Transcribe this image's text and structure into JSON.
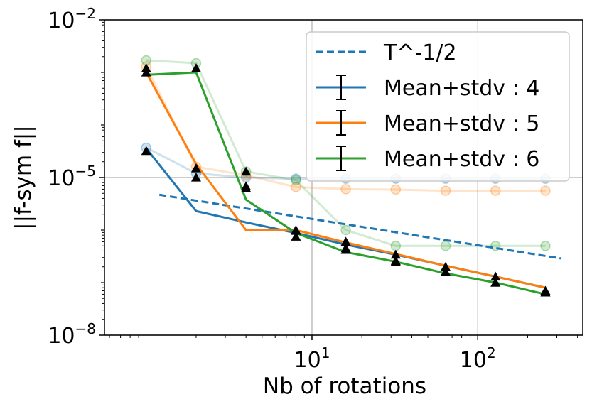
{
  "chart_data": {
    "type": "line",
    "title": "",
    "xlabel": "Nb of rotations",
    "ylabel": "||f-sym f||",
    "xscale": "log",
    "yscale": "log",
    "xlim": [
      0.56,
      430
    ],
    "ylim": [
      1e-08,
      0.01
    ],
    "x_ticks": [
      {
        "value": 10,
        "base": "10",
        "exp": "1"
      },
      {
        "value": 100,
        "base": "10",
        "exp": "2"
      }
    ],
    "y_ticks": [
      {
        "value": 1e-08,
        "base": "10",
        "exp": "−8"
      },
      {
        "value": 1e-05,
        "base": "10",
        "exp": "−5"
      },
      {
        "value": 0.01,
        "base": "10",
        "exp": "−2"
      }
    ],
    "grid": true,
    "legend_position": "top-right",
    "reference_line": {
      "name": "T^-1/2",
      "color": "#1f77b4",
      "style": "dashed",
      "x_start": 1.2,
      "x_end": 320,
      "y_start": 4.7e-06
    },
    "series": [
      {
        "name": "Mean+stdv : 4",
        "color": "#1f77b4",
        "x": [
          1,
          2,
          4,
          8,
          16,
          32,
          64,
          128,
          256
        ],
        "mean": [
          3.6e-05,
          2.3e-06,
          1.4e-06,
          8.8e-07,
          5.3e-07,
          3.4e-07,
          2.1e-07,
          1.3e-07,
          8e-08
        ],
        "mean_plus_std": [
          3.7e-05,
          1.2e-05,
          1e-05,
          9.5e-06,
          9.5e-06,
          9.5e-06,
          9.5e-06,
          9.5e-06,
          9.5e-06
        ],
        "markers": [
          3.2e-05,
          1e-05,
          6.3e-06,
          7.5e-07,
          4.5e-07,
          2.6e-07,
          1.6e-07,
          1e-07,
          6.5e-08
        ]
      },
      {
        "name": "Mean+stdv : 5",
        "color": "#ff7f0e",
        "x": [
          1,
          2,
          4,
          8,
          16,
          32,
          64,
          128,
          256
        ],
        "mean": [
          0.001,
          1.8e-05,
          1e-06,
          1e-06,
          5.8e-07,
          3.5e-07,
          2.1e-07,
          1.3e-07,
          8e-08
        ],
        "mean_plus_std": [
          0.0013,
          1.6e-05,
          1.1e-05,
          6.6e-06,
          6e-06,
          5.9e-06,
          5.6e-06,
          5.6e-06,
          5.6e-06
        ],
        "markers": [
          0.0012,
          1.5e-05,
          6.8e-06,
          9.7e-07,
          6e-07,
          3.4e-07,
          2e-07,
          1.3e-07,
          7e-08
        ]
      },
      {
        "name": "Mean+stdv : 6",
        "color": "#2ca02c",
        "x": [
          1,
          2,
          4,
          8,
          16,
          32,
          64,
          128,
          256
        ],
        "mean": [
          0.0009,
          0.001,
          3.8e-06,
          8.8e-07,
          3.8e-07,
          2.5e-07,
          1.5e-07,
          1e-07,
          6e-08
        ],
        "mean_plus_std": [
          0.0017,
          0.0015,
          1.3e-05,
          8.9e-06,
          1e-06,
          5e-07,
          5e-07,
          5e-07,
          5e-07
        ],
        "markers": [
          0.001,
          0.0012,
          1.3e-05,
          1e-06,
          4.2e-07,
          2.5e-07,
          1.6e-07,
          1e-07,
          6.5e-08
        ]
      }
    ]
  }
}
